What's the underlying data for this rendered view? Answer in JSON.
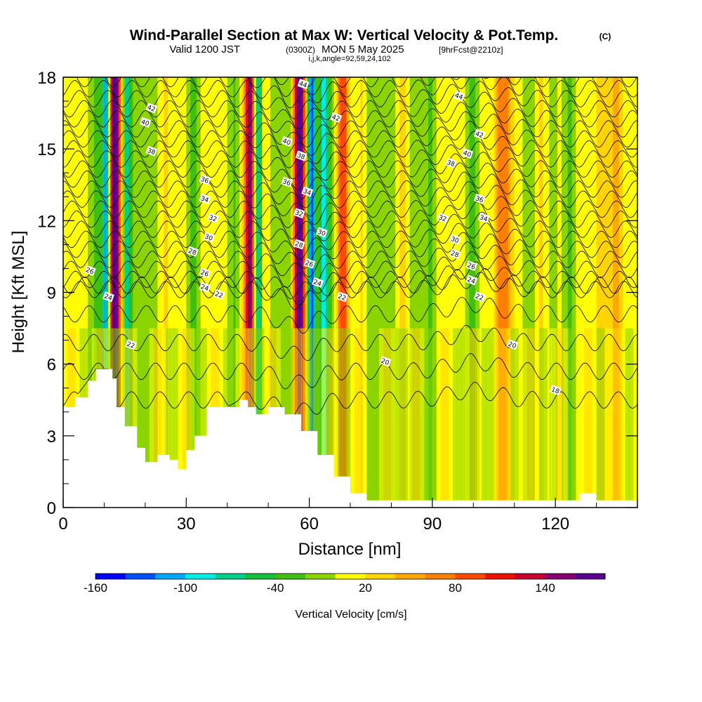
{
  "header": {
    "title": "Wind-Parallel Section at Max W: Vertical Velocity & Pot.Temp.",
    "title_mark": "(C)",
    "valid_prefix": "Valid 1200 JST",
    "valid_utc": "(0300Z)",
    "valid_date": "MON 5 May 2025",
    "forecast": "[9hrFcst@2210z]",
    "indices": "i,j,k,angle=92,59,24,102"
  },
  "chart_data": {
    "type": "heatmap",
    "xlabel": "Distance [nm]",
    "ylabel": "Height [Kft MSL]",
    "xlim": [
      0,
      140
    ],
    "ylim": [
      0,
      18
    ],
    "x_ticks": [
      "0",
      "30",
      "60",
      "90",
      "120"
    ],
    "y_ticks": [
      "0",
      "3",
      "6",
      "9",
      "12",
      "15",
      "18"
    ],
    "colorbar": {
      "label": "Vertical Velocity [cm/s]",
      "tick_labels": [
        "-160",
        "-100",
        "-40",
        "20",
        "80",
        "140"
      ],
      "tick_values": [
        -160,
        -100,
        -40,
        20,
        80,
        140
      ],
      "range": [
        -160,
        180
      ],
      "step": 20,
      "colors": [
        "#0000ff",
        "#0050ff",
        "#00a8ff",
        "#00eee6",
        "#00cf8a",
        "#14c03c",
        "#3fbf0f",
        "#8cd400",
        "#ffff00",
        "#ffd400",
        "#ffa800",
        "#ff7f00",
        "#ff4a00",
        "#ee1100",
        "#c80030",
        "#8a0070",
        "#5a0090"
      ]
    },
    "updraft_bands": [
      {
        "x": 12.5,
        "w": 200,
        "half_width": 1.3
      },
      {
        "x": 45.5,
        "w": 160,
        "half_width": 1.4
      },
      {
        "x": 57.5,
        "w": 170,
        "half_width": 1.5
      },
      {
        "x": 68.0,
        "w": 90,
        "half_width": 1.7
      },
      {
        "x": 108.0,
        "w": 65,
        "half_width": 2.5
      },
      {
        "x": 134.0,
        "w": 60,
        "half_width": 2.5
      }
    ],
    "downdraft_bands": [
      {
        "x": 10.5,
        "w": -120,
        "half_width": 1.0
      },
      {
        "x": 15.5,
        "w": -90,
        "half_width": 1.0
      },
      {
        "x": 47.5,
        "w": -110,
        "half_width": 1.0
      },
      {
        "x": 60.5,
        "w": -140,
        "half_width": 1.0
      },
      {
        "x": 63.5,
        "w": -100,
        "half_width": 1.0
      }
    ],
    "terrain_kft": [
      [
        0,
        4.2
      ],
      [
        3,
        4.6
      ],
      [
        6,
        5.3
      ],
      [
        8,
        5.8
      ],
      [
        11,
        5.8
      ],
      [
        12,
        5.4
      ],
      [
        13,
        4.2
      ],
      [
        15,
        3.4
      ],
      [
        18,
        2.5
      ],
      [
        20,
        1.9
      ],
      [
        23,
        2.2
      ],
      [
        26,
        2.0
      ],
      [
        28,
        1.6
      ],
      [
        30,
        2.4
      ],
      [
        32,
        3.0
      ],
      [
        35,
        4.2
      ],
      [
        40,
        4.2
      ],
      [
        43,
        4.5
      ],
      [
        45,
        4.2
      ],
      [
        47,
        3.9
      ],
      [
        50,
        4.2
      ],
      [
        54,
        3.9
      ],
      [
        58,
        3.2
      ],
      [
        62,
        2.2
      ],
      [
        66,
        1.3
      ],
      [
        70,
        0.6
      ],
      [
        74,
        0.3
      ],
      [
        85,
        0.3
      ],
      [
        100,
        0.3
      ],
      [
        125,
        0.3
      ],
      [
        126,
        0.6
      ],
      [
        129,
        0.6
      ],
      [
        130,
        0.3
      ],
      [
        140,
        0.3
      ]
    ],
    "contour_labels": [
      {
        "text": "44",
        "x": 58.5,
        "y": 17.7
      },
      {
        "text": "44",
        "x": 96.5,
        "y": 17.2
      },
      {
        "text": "42",
        "x": 21.5,
        "y": 16.7
      },
      {
        "text": "42",
        "x": 66.5,
        "y": 16.3
      },
      {
        "text": "42",
        "x": 101.5,
        "y": 15.6
      },
      {
        "text": "40",
        "x": 20.0,
        "y": 16.1
      },
      {
        "text": "40",
        "x": 54.5,
        "y": 15.3
      },
      {
        "text": "40",
        "x": 98.5,
        "y": 14.8
      },
      {
        "text": "38",
        "x": 21.5,
        "y": 14.9
      },
      {
        "text": "38",
        "x": 58.0,
        "y": 14.7
      },
      {
        "text": "38",
        "x": 94.5,
        "y": 14.4
      },
      {
        "text": "36",
        "x": 34.5,
        "y": 13.7
      },
      {
        "text": "36",
        "x": 54.5,
        "y": 13.6
      },
      {
        "text": "36",
        "x": 101.5,
        "y": 12.9
      },
      {
        "text": "34",
        "x": 34.5,
        "y": 12.9
      },
      {
        "text": "34",
        "x": 59.5,
        "y": 13.2
      },
      {
        "text": "34",
        "x": 102.5,
        "y": 12.1
      },
      {
        "text": "32",
        "x": 36.5,
        "y": 12.1
      },
      {
        "text": "32",
        "x": 57.5,
        "y": 12.3
      },
      {
        "text": "32",
        "x": 92.5,
        "y": 12.1
      },
      {
        "text": "30",
        "x": 35.5,
        "y": 11.3
      },
      {
        "text": "30",
        "x": 63.0,
        "y": 11.5
      },
      {
        "text": "30",
        "x": 95.5,
        "y": 11.2
      },
      {
        "text": "28",
        "x": 31.5,
        "y": 10.7
      },
      {
        "text": "28",
        "x": 57.5,
        "y": 11.0
      },
      {
        "text": "28",
        "x": 95.5,
        "y": 10.6
      },
      {
        "text": "26",
        "x": 6.5,
        "y": 9.9
      },
      {
        "text": "26",
        "x": 34.5,
        "y": 9.8
      },
      {
        "text": "26",
        "x": 60.0,
        "y": 10.2
      },
      {
        "text": "26",
        "x": 99.5,
        "y": 10.1
      },
      {
        "text": "24",
        "x": 11.0,
        "y": 8.8
      },
      {
        "text": "24",
        "x": 34.5,
        "y": 9.2
      },
      {
        "text": "24",
        "x": 62.0,
        "y": 9.4
      },
      {
        "text": "24",
        "x": 99.5,
        "y": 9.5
      },
      {
        "text": "22",
        "x": 38.0,
        "y": 8.9
      },
      {
        "text": "22",
        "x": 68.0,
        "y": 8.8
      },
      {
        "text": "22",
        "x": 101.5,
        "y": 8.8
      },
      {
        "text": "22",
        "x": 16.5,
        "y": 6.8
      },
      {
        "text": "20",
        "x": 78.5,
        "y": 6.1
      },
      {
        "text": "20",
        "x": 109.5,
        "y": 6.8
      },
      {
        "text": "18",
        "x": 120.0,
        "y": 4.9
      }
    ]
  }
}
